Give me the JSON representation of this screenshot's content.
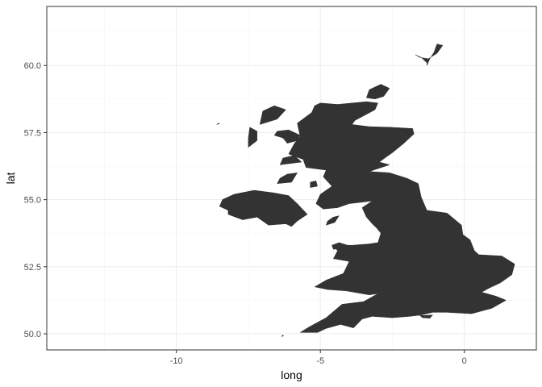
{
  "chart_data": {
    "type": "map",
    "xlabel": "long",
    "ylabel": "lat",
    "xlim": [
      -14.5,
      2.5
    ],
    "ylim": [
      49.4,
      62.2
    ],
    "x_ticks": [
      {
        "value": -10,
        "label": "-10"
      },
      {
        "value": -5,
        "label": "-5"
      },
      {
        "value": 0,
        "label": "0"
      }
    ],
    "y_ticks": [
      {
        "value": 50.0,
        "label": "50.0"
      },
      {
        "value": 52.5,
        "label": "52.5"
      },
      {
        "value": 55.0,
        "label": "55.0"
      },
      {
        "value": 57.5,
        "label": "57.5"
      },
      {
        "value": 60.0,
        "label": "60.0"
      }
    ],
    "grid": true,
    "theme": "bw",
    "colors": {
      "fill": "#333333",
      "grid_major": "#ebebeb",
      "grid_minor": "#f5f5f5",
      "panel_border": "#333333",
      "tick_label": "#4d4d4d"
    },
    "regions": [
      {
        "name": "great-britain",
        "coords": [
          [
            -5.0,
            58.6
          ],
          [
            -4.4,
            58.55
          ],
          [
            -3.4,
            58.65
          ],
          [
            -3.0,
            58.6
          ],
          [
            -3.1,
            58.35
          ],
          [
            -3.8,
            57.95
          ],
          [
            -3.9,
            57.8
          ],
          [
            -3.3,
            57.72
          ],
          [
            -2.6,
            57.7
          ],
          [
            -1.8,
            57.65
          ],
          [
            -1.75,
            57.45
          ],
          [
            -2.1,
            57.1
          ],
          [
            -2.5,
            56.75
          ],
          [
            -2.7,
            56.6
          ],
          [
            -2.95,
            56.4
          ],
          [
            -2.6,
            56.3
          ],
          [
            -3.3,
            56.05
          ],
          [
            -2.6,
            56.0
          ],
          [
            -2.0,
            55.8
          ],
          [
            -1.6,
            55.6
          ],
          [
            -1.5,
            55.1
          ],
          [
            -1.3,
            54.6
          ],
          [
            -0.6,
            54.5
          ],
          [
            -0.1,
            54.05
          ],
          [
            -0.05,
            53.7
          ],
          [
            0.2,
            53.5
          ],
          [
            0.35,
            53.1
          ],
          [
            0.5,
            52.95
          ],
          [
            1.3,
            52.9
          ],
          [
            1.75,
            52.6
          ],
          [
            1.65,
            52.2
          ],
          [
            1.25,
            51.9
          ],
          [
            0.85,
            51.7
          ],
          [
            0.6,
            51.55
          ],
          [
            1.1,
            51.4
          ],
          [
            1.45,
            51.25
          ],
          [
            0.95,
            50.95
          ],
          [
            0.25,
            50.75
          ],
          [
            -0.6,
            50.8
          ],
          [
            -1.1,
            50.8
          ],
          [
            -1.5,
            50.7
          ],
          [
            -1.9,
            50.65
          ],
          [
            -2.5,
            50.6
          ],
          [
            -3.2,
            50.65
          ],
          [
            -3.55,
            50.55
          ],
          [
            -3.85,
            50.22
          ],
          [
            -4.3,
            50.35
          ],
          [
            -4.8,
            50.2
          ],
          [
            -5.1,
            50.05
          ],
          [
            -5.7,
            50.05
          ],
          [
            -5.4,
            50.25
          ],
          [
            -4.8,
            50.6
          ],
          [
            -4.25,
            51.1
          ],
          [
            -3.5,
            51.2
          ],
          [
            -3.0,
            51.5
          ],
          [
            -3.3,
            51.45
          ],
          [
            -4.1,
            51.6
          ],
          [
            -4.75,
            51.65
          ],
          [
            -5.2,
            51.75
          ],
          [
            -4.8,
            52.0
          ],
          [
            -4.2,
            52.25
          ],
          [
            -4.0,
            52.7
          ],
          [
            -4.55,
            52.8
          ],
          [
            -4.4,
            53.1
          ],
          [
            -4.6,
            53.3
          ],
          [
            -3.9,
            53.3
          ],
          [
            -3.3,
            53.35
          ],
          [
            -3.0,
            53.4
          ],
          [
            -2.9,
            53.75
          ],
          [
            -3.05,
            53.95
          ],
          [
            -3.2,
            54.1
          ],
          [
            -3.4,
            54.35
          ],
          [
            -3.55,
            54.7
          ],
          [
            -3.2,
            54.95
          ],
          [
            -4.0,
            54.85
          ],
          [
            -4.4,
            54.7
          ],
          [
            -4.9,
            54.65
          ],
          [
            -5.15,
            54.85
          ],
          [
            -5.0,
            55.2
          ],
          [
            -4.6,
            55.5
          ],
          [
            -4.9,
            55.85
          ],
          [
            -4.8,
            56.1
          ],
          [
            -5.5,
            56.2
          ],
          [
            -5.6,
            56.5
          ],
          [
            -6.1,
            56.7
          ],
          [
            -5.9,
            57.1
          ],
          [
            -5.7,
            57.35
          ],
          [
            -5.8,
            57.85
          ],
          [
            -5.3,
            58.25
          ],
          [
            -5.2,
            58.5
          ]
        ]
      },
      {
        "name": "ireland",
        "coords": [
          [
            -5.45,
            54.45
          ],
          [
            -5.8,
            54.85
          ],
          [
            -6.1,
            55.15
          ],
          [
            -6.6,
            55.25
          ],
          [
            -7.3,
            55.35
          ],
          [
            -8.0,
            55.2
          ],
          [
            -8.4,
            55.0
          ],
          [
            -8.5,
            54.75
          ],
          [
            -8.2,
            54.6
          ],
          [
            -8.2,
            54.45
          ],
          [
            -7.7,
            54.25
          ],
          [
            -7.2,
            54.35
          ],
          [
            -6.8,
            54.05
          ],
          [
            -6.2,
            54.1
          ],
          [
            -6.0,
            54.0
          ],
          [
            -5.8,
            54.2
          ],
          [
            -5.6,
            54.35
          ]
        ]
      },
      {
        "name": "shetland",
        "coords": [
          [
            -1.3,
            60.0
          ],
          [
            -1.2,
            60.25
          ],
          [
            -1.05,
            60.5
          ],
          [
            -0.95,
            60.8
          ],
          [
            -0.75,
            60.75
          ],
          [
            -0.95,
            60.45
          ],
          [
            -1.25,
            60.25
          ],
          [
            -1.55,
            60.3
          ],
          [
            -1.7,
            60.4
          ],
          [
            -1.5,
            60.3
          ],
          [
            -1.3,
            60.1
          ]
        ]
      },
      {
        "name": "orkney",
        "coords": [
          [
            -3.4,
            58.8
          ],
          [
            -3.1,
            58.75
          ],
          [
            -2.8,
            58.85
          ],
          [
            -2.6,
            59.15
          ],
          [
            -2.9,
            59.3
          ],
          [
            -3.3,
            59.1
          ]
        ]
      },
      {
        "name": "isle-of-man",
        "coords": [
          [
            -4.8,
            54.05
          ],
          [
            -4.5,
            54.15
          ],
          [
            -4.35,
            54.4
          ],
          [
            -4.55,
            54.35
          ],
          [
            -4.75,
            54.2
          ]
        ]
      },
      {
        "name": "anglesey",
        "coords": [
          [
            -4.55,
            53.15
          ],
          [
            -4.2,
            53.2
          ],
          [
            -4.05,
            53.3
          ],
          [
            -4.35,
            53.4
          ],
          [
            -4.6,
            53.3
          ]
        ]
      },
      {
        "name": "isle-of-wight",
        "coords": [
          [
            -1.55,
            50.68
          ],
          [
            -1.1,
            50.7
          ],
          [
            -1.2,
            50.58
          ],
          [
            -1.45,
            50.6
          ]
        ]
      },
      {
        "name": "skye",
        "coords": [
          [
            -6.15,
            57.1
          ],
          [
            -5.8,
            57.2
          ],
          [
            -5.7,
            57.4
          ],
          [
            -6.1,
            57.6
          ],
          [
            -6.5,
            57.55
          ],
          [
            -6.6,
            57.4
          ],
          [
            -6.3,
            57.3
          ]
        ]
      },
      {
        "name": "lewis-harris",
        "coords": [
          [
            -7.1,
            57.8
          ],
          [
            -6.5,
            58.0
          ],
          [
            -6.2,
            58.35
          ],
          [
            -6.6,
            58.5
          ],
          [
            -7.0,
            58.3
          ],
          [
            -7.05,
            58.05
          ]
        ]
      },
      {
        "name": "uist",
        "coords": [
          [
            -7.5,
            56.95
          ],
          [
            -7.2,
            57.2
          ],
          [
            -7.2,
            57.55
          ],
          [
            -7.45,
            57.7
          ],
          [
            -7.5,
            57.3
          ]
        ]
      },
      {
        "name": "mull",
        "coords": [
          [
            -6.4,
            56.3
          ],
          [
            -5.65,
            56.4
          ],
          [
            -5.9,
            56.65
          ],
          [
            -6.3,
            56.55
          ]
        ]
      },
      {
        "name": "islay-jura",
        "coords": [
          [
            -6.5,
            55.6
          ],
          [
            -6.0,
            55.65
          ],
          [
            -5.8,
            56.0
          ],
          [
            -6.15,
            55.95
          ],
          [
            -6.4,
            55.8
          ]
        ]
      },
      {
        "name": "arran",
        "coords": [
          [
            -5.35,
            55.45
          ],
          [
            -5.1,
            55.5
          ],
          [
            -5.15,
            55.7
          ],
          [
            -5.35,
            55.65
          ]
        ]
      },
      {
        "name": "scilly",
        "coords": [
          [
            -6.35,
            49.9
          ],
          [
            -6.28,
            49.92
          ],
          [
            -6.3,
            49.96
          ]
        ]
      },
      {
        "name": "st-kilda",
        "coords": [
          [
            -8.6,
            57.8
          ],
          [
            -8.5,
            57.83
          ],
          [
            -8.55,
            57.85
          ]
        ]
      }
    ]
  }
}
